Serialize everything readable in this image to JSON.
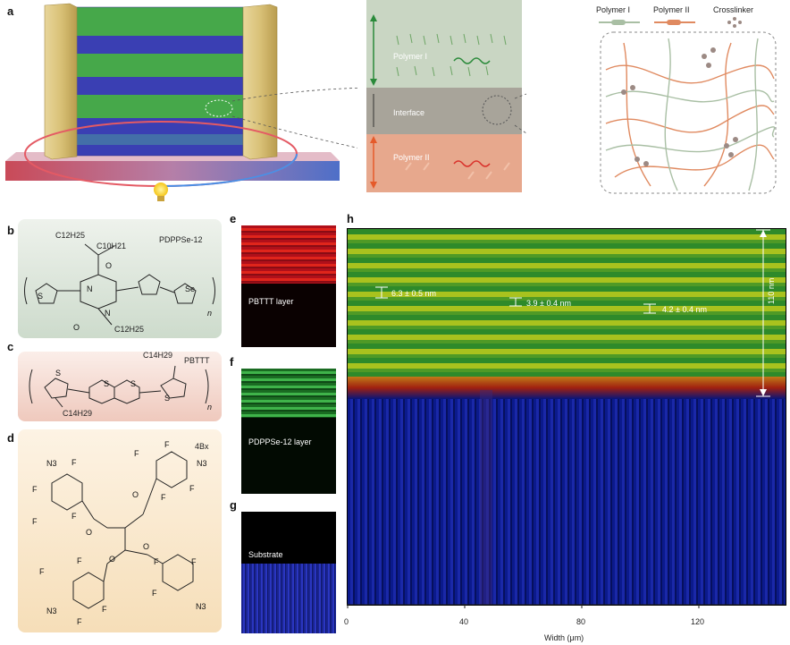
{
  "panels": {
    "a": "a",
    "b": "b",
    "c": "c",
    "d": "d",
    "e": "e",
    "f": "f",
    "g": "g",
    "h": "h"
  },
  "panel_a": {
    "layer_labels": [
      "Polymer I",
      "Interface",
      "Polymer II"
    ],
    "legend": [
      "Polymer I",
      "Polymer II",
      "Crosslinker"
    ]
  },
  "panel_b": {
    "name": "PDPPSe-12",
    "sub_c12": "C12H25",
    "sub_c10": "C10H21",
    "sub_c12b": "C12H25",
    "atoms": [
      "S",
      "Se",
      "O",
      "O",
      "N",
      "N"
    ],
    "n": "n"
  },
  "panel_c": {
    "name": "PBTTT",
    "sub_top": "C14H29",
    "sub_bottom": "C14H29",
    "atoms": [
      "S",
      "S",
      "S",
      "S"
    ],
    "n": "n"
  },
  "panel_d": {
    "name": "4Bx",
    "n3": "N3",
    "f": "F",
    "o": "O"
  },
  "panel_e": {
    "label": "PBTTT layer"
  },
  "panel_f": {
    "label": "PDPPSe-12 layer"
  },
  "panel_g": {
    "label": "Substrate"
  },
  "panel_h": {
    "measurements": [
      "6.3 ± 0.5 nm",
      "3.9 ± 0.4 nm",
      "4.2 ± 0.4 nm"
    ],
    "thickness": "110 nm",
    "x_ticks": [
      "0",
      "40",
      "80",
      "120"
    ],
    "xlabel": "Width (μm)"
  },
  "colors": {
    "green": "#2e8a3a",
    "red": "#e0251b",
    "blue": "#1f2aa8",
    "peach": "#f7e3c4",
    "mint": "#dfe7dd",
    "pink": "#f1d8d1"
  }
}
